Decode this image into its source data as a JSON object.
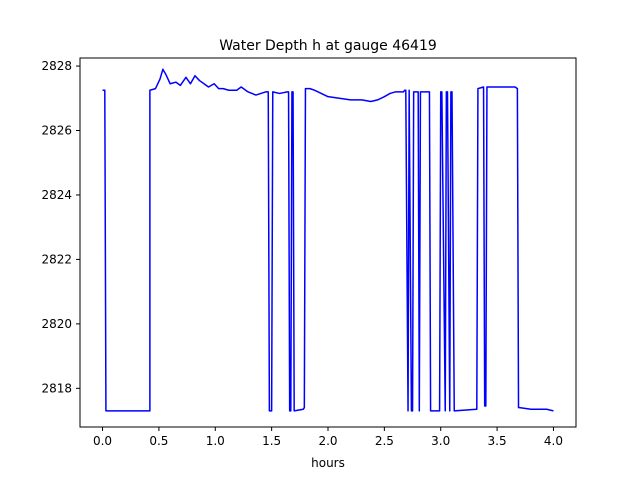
{
  "chart_data": {
    "type": "line",
    "title": "Water Depth h at gauge 46419",
    "xlabel": "hours",
    "ylabel": "",
    "xlim": [
      -0.2,
      4.2
    ],
    "ylim": [
      2816.8,
      2828.25
    ],
    "xticks": [
      0.0,
      0.5,
      1.0,
      1.5,
      2.0,
      2.5,
      3.0,
      3.5,
      4.0
    ],
    "xtick_labels": [
      "0.0",
      "0.5",
      "1.0",
      "1.5",
      "2.0",
      "2.5",
      "3.0",
      "3.5",
      "4.0"
    ],
    "yticks": [
      2818,
      2820,
      2822,
      2824,
      2826,
      2828
    ],
    "ytick_labels": [
      "2818",
      "2820",
      "2822",
      "2824",
      "2826",
      "2828"
    ],
    "grid": false,
    "series": [
      {
        "color": "#0000ff",
        "x": [
          0.0,
          0.02,
          0.03,
          0.42,
          0.42,
          0.47,
          0.51,
          0.535,
          0.56,
          0.6,
          0.65,
          0.69,
          0.74,
          0.78,
          0.82,
          0.86,
          0.9,
          0.94,
          0.99,
          1.03,
          1.07,
          1.12,
          1.19,
          1.23,
          1.29,
          1.36,
          1.45,
          1.47,
          1.48,
          1.5,
          1.51,
          1.57,
          1.64,
          1.65,
          1.66,
          1.67,
          1.68,
          1.69,
          1.7,
          1.78,
          1.79,
          1.8,
          1.84,
          1.88,
          1.94,
          2.0,
          2.1,
          2.2,
          2.3,
          2.38,
          2.44,
          2.5,
          2.55,
          2.6,
          2.67,
          2.68,
          2.69,
          2.71,
          2.72,
          2.72,
          2.74,
          2.75,
          2.76,
          2.8,
          2.81,
          2.82,
          2.9,
          2.91,
          2.92,
          2.99,
          3.0,
          3.01,
          3.04,
          3.05,
          3.06,
          3.08,
          3.09,
          3.1,
          3.12,
          3.32,
          3.33,
          3.38,
          3.39,
          3.4,
          3.41,
          3.51,
          3.58,
          3.66,
          3.68,
          3.69,
          3.7,
          3.8,
          3.88,
          3.94,
          4.0
        ],
        "y": [
          2827.25,
          2827.25,
          2817.3,
          2817.3,
          2827.25,
          2827.3,
          2827.6,
          2827.9,
          2827.75,
          2827.45,
          2827.5,
          2827.4,
          2827.65,
          2827.45,
          2827.7,
          2827.55,
          2827.45,
          2827.35,
          2827.45,
          2827.3,
          2827.3,
          2827.25,
          2827.25,
          2827.35,
          2827.2,
          2827.1,
          2827.2,
          2827.2,
          2817.3,
          2817.3,
          2827.2,
          2827.15,
          2827.2,
          2827.2,
          2817.3,
          2817.3,
          2827.2,
          2827.2,
          2817.3,
          2817.35,
          2817.4,
          2827.3,
          2827.3,
          2827.25,
          2827.15,
          2827.05,
          2827.0,
          2826.95,
          2826.95,
          2826.9,
          2826.95,
          2827.05,
          2827.15,
          2827.2,
          2827.2,
          2827.25,
          2827.25,
          2817.3,
          2827.25,
          2827.25,
          2817.3,
          2817.3,
          2827.2,
          2827.2,
          2817.3,
          2827.2,
          2827.2,
          2817.3,
          2817.3,
          2817.3,
          2827.2,
          2827.2,
          2817.3,
          2827.2,
          2827.2,
          2817.3,
          2827.2,
          2827.2,
          2817.3,
          2817.35,
          2827.3,
          2827.35,
          2817.45,
          2817.45,
          2827.35,
          2827.35,
          2827.35,
          2827.35,
          2827.3,
          2817.4,
          2817.4,
          2817.35,
          2817.35,
          2817.35,
          2817.3
        ]
      }
    ]
  }
}
